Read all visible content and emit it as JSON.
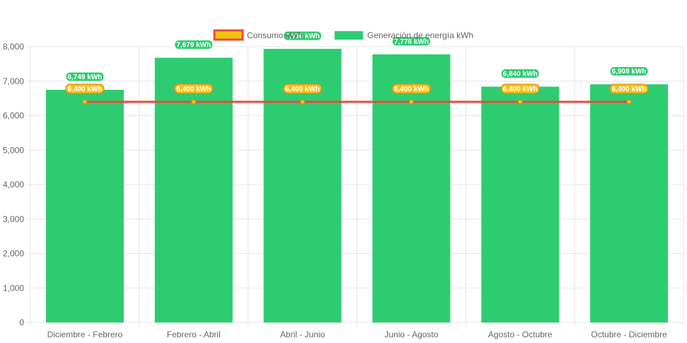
{
  "chart_data": {
    "type": "bar",
    "categories": [
      "Diciembre - Febrero",
      "Febrero - Abril",
      "Abril - Junio",
      "Junio - Agosto",
      "Agosto - Octubre",
      "Octubre - Diciembre"
    ],
    "series": [
      {
        "name": "Consumo kWh",
        "type": "line",
        "values": [
          6400,
          6400,
          6400,
          6400,
          6400,
          6400
        ],
        "data_labels": [
          "6,400 kWh",
          "6,400 kWh",
          "6,400 kWh",
          "6,400 kWh",
          "6,400 kWh",
          "6,400 kWh"
        ],
        "color": "#e74c3c",
        "point_color": "#f1c40f"
      },
      {
        "name": "Generación de energía kWh",
        "type": "bar",
        "values": [
          6749,
          7679,
          7936,
          7778,
          6840,
          6908
        ],
        "data_labels": [
          "6,749 kWh",
          "7,679 kWh",
          "7,936 kWh",
          "7,778 kWh",
          "6,840 kWh",
          "6,908 kWh"
        ],
        "color": "#2ecc71"
      }
    ],
    "y_ticks": [
      "0",
      "1,000",
      "2,000",
      "3,000",
      "4,000",
      "5,000",
      "6,000",
      "7,000",
      "8,000"
    ],
    "ylim": [
      0,
      8000
    ],
    "grid": true,
    "legend": "top-center",
    "title": "",
    "xlabel": "",
    "ylabel": ""
  }
}
